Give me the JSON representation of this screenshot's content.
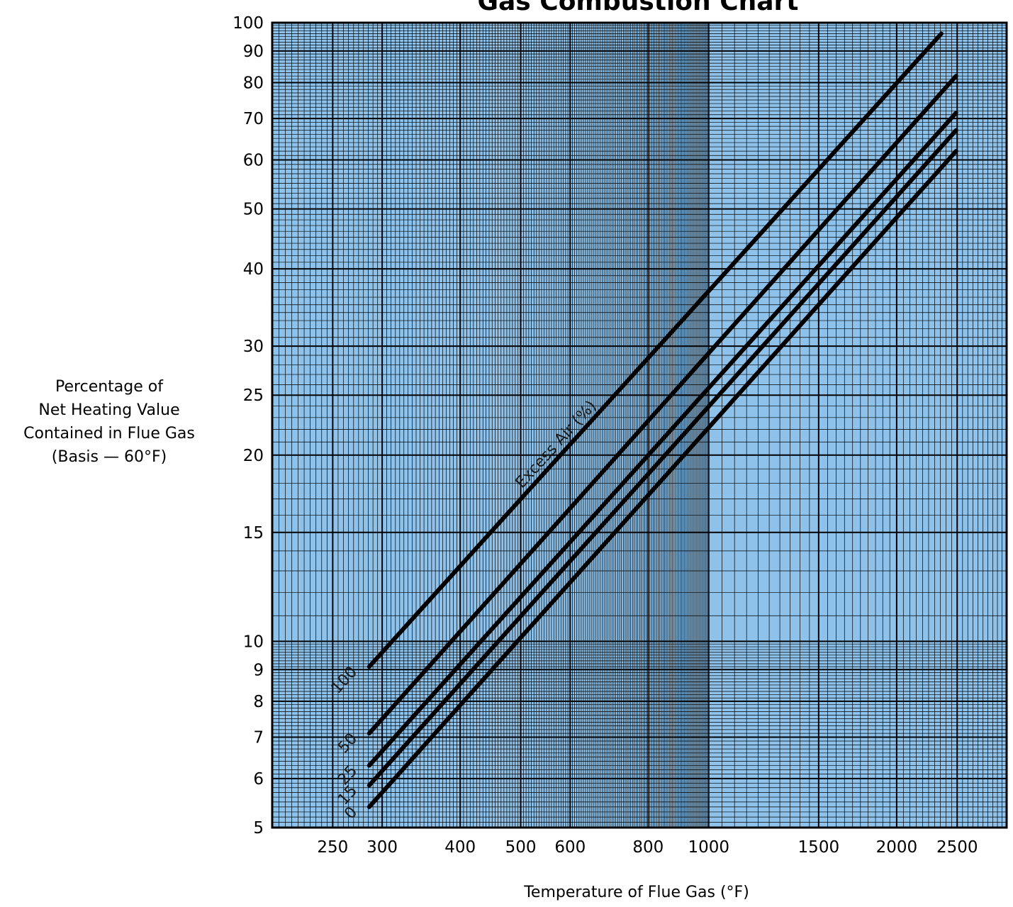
{
  "chart_data": {
    "type": "line",
    "title": "Gas Combustion Chart",
    "xlabel": "Temperature of Flue Gas (°F)",
    "ylabel_lines": [
      "Percentage of",
      "Net Heating Value",
      "Contained in Flue Gas",
      "(Basis — 60°F)"
    ],
    "x_scale": "log",
    "y_scale": "log",
    "xlim": [
      200,
      3000
    ],
    "ylim": [
      5,
      100
    ],
    "x_ticks": [
      250,
      300,
      400,
      500,
      600,
      800,
      1000,
      1500,
      2000,
      2500
    ],
    "x_tick_labels": [
      "250",
      "300",
      "400",
      "500",
      "600",
      "800",
      "1000",
      "1500",
      "2000",
      "2500"
    ],
    "y_ticks": [
      5,
      6,
      7,
      8,
      9,
      10,
      15,
      20,
      25,
      30,
      40,
      50,
      60,
      70,
      80,
      90,
      100
    ],
    "y_tick_labels": [
      "5",
      "6",
      "7",
      "8",
      "9",
      "10",
      "15",
      "20",
      "25",
      "30",
      "40",
      "50",
      "60",
      "70",
      "80",
      "90",
      "100"
    ],
    "grid": true,
    "annotation": "Excess Air (%)",
    "series": [
      {
        "name": "100",
        "x": [
          286,
          2358
        ],
        "y": [
          9.1,
          96
        ]
      },
      {
        "name": "50",
        "x": [
          286,
          2490
        ],
        "y": [
          7.1,
          82
        ]
      },
      {
        "name": "25",
        "x": [
          286,
          2490
        ],
        "y": [
          6.3,
          71.5
        ]
      },
      {
        "name": "15",
        "x": [
          286,
          2490
        ],
        "y": [
          5.85,
          67
        ]
      },
      {
        "name": "0",
        "x": [
          286,
          2490
        ],
        "y": [
          5.4,
          62
        ]
      }
    ]
  },
  "colors": {
    "plot_background": "#8ec2ea",
    "grid_line": "#000000",
    "series_line": "#000000"
  }
}
